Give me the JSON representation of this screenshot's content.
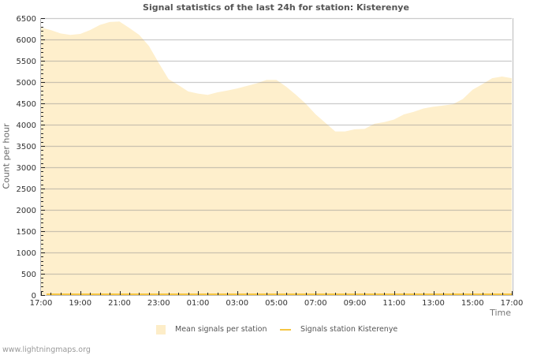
{
  "chart": {
    "title": "Signal statistics of the last 24h for station: Kisterenye",
    "ylabel": "Count per hour",
    "xlabel": "Time"
  },
  "legend": [
    {
      "label": "Mean signals per station",
      "color": "#FDEDC8",
      "type": "area"
    },
    {
      "label": "Signals station Kisterenye",
      "color": "#F5C542",
      "type": "line"
    }
  ],
  "footer": {
    "credit": "www.lightningmaps.org"
  },
  "colors": {
    "area_fill": "#FEEFCC",
    "line": "#F5C542",
    "grid": "rgba(140,140,140,0.45)",
    "axis": "#bbbbbb",
    "tick": "#222222",
    "tick_label": "#333333"
  },
  "chart_data": {
    "type": "area",
    "title": "Signal statistics of the last 24h for station: Kisterenye",
    "xlabel": "Time",
    "ylabel": "Count per hour",
    "ylim": [
      0,
      6500
    ],
    "yticks": [
      0,
      500,
      1000,
      1500,
      2000,
      2500,
      3000,
      3500,
      4000,
      4500,
      5000,
      5500,
      6000,
      6500
    ],
    "y_minor_step": 100,
    "xtick_labels": [
      "17:00",
      "19:00",
      "21:00",
      "23:00",
      "01:00",
      "03:00",
      "05:00",
      "07:00",
      "09:00",
      "11:00",
      "13:00",
      "15:00",
      "17:00"
    ],
    "xtick_every_n_points": 4,
    "grid": true,
    "legend_position": "bottom",
    "x": [
      "17:00",
      "17:30",
      "18:00",
      "18:30",
      "19:00",
      "19:30",
      "20:00",
      "20:30",
      "21:00",
      "21:30",
      "22:00",
      "22:30",
      "23:00",
      "23:30",
      "00:00",
      "00:30",
      "01:00",
      "01:30",
      "02:00",
      "02:30",
      "03:00",
      "03:30",
      "04:00",
      "04:30",
      "05:00",
      "05:30",
      "06:00",
      "06:30",
      "07:00",
      "07:30",
      "08:00",
      "08:30",
      "09:00",
      "09:30",
      "10:00",
      "10:30",
      "11:00",
      "11:30",
      "12:00",
      "12:30",
      "13:00",
      "13:30",
      "14:00",
      "14:30",
      "15:00",
      "15:30",
      "16:00",
      "16:30",
      "17:00"
    ],
    "series": [
      {
        "name": "Mean signals per station",
        "style": "area",
        "values": [
          6280,
          6220,
          6140,
          6105,
          6130,
          6220,
          6340,
          6410,
          6420,
          6270,
          6110,
          5850,
          5450,
          5070,
          4930,
          4780,
          4730,
          4700,
          4760,
          4800,
          4850,
          4910,
          4970,
          5050,
          5050,
          4890,
          4700,
          4490,
          4240,
          4040,
          3840,
          3840,
          3890,
          3900,
          4020,
          4060,
          4120,
          4240,
          4300,
          4380,
          4420,
          4450,
          4480,
          4600,
          4820,
          4950,
          5090,
          5130,
          5090
        ]
      },
      {
        "name": "Signals station Kisterenye",
        "style": "line",
        "values": [
          0,
          0,
          0,
          0,
          0,
          0,
          0,
          0,
          0,
          0,
          0,
          0,
          0,
          0,
          0,
          0,
          0,
          0,
          0,
          0,
          0,
          0,
          0,
          0,
          0,
          0,
          0,
          0,
          0,
          0,
          0,
          0,
          0,
          0,
          0,
          0,
          0,
          0,
          0,
          0,
          0,
          0,
          0,
          0,
          0,
          0,
          0,
          0,
          0
        ]
      }
    ]
  }
}
